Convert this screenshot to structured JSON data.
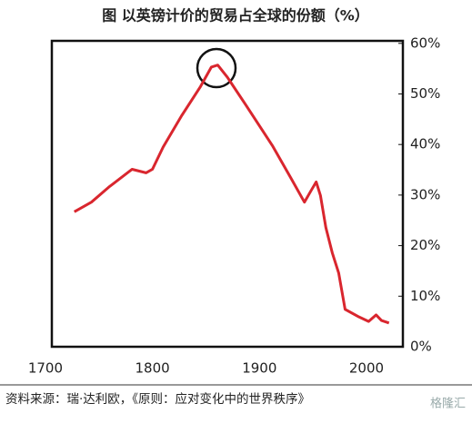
{
  "chart_data": {
    "type": "line",
    "title": "图 以英镑计价的贸易占全球的份额（%）",
    "source": "资料来源：瑞·达利欧，《原则：应对变化中的世界秩序》",
    "watermark": "格隆汇",
    "x": [
      1727,
      1743,
      1760,
      1781,
      1794,
      1800,
      1810,
      1827,
      1845,
      1855,
      1861,
      1870,
      1887,
      1912,
      1929,
      1942,
      1948,
      1953,
      1957,
      1962,
      1968,
      1974,
      1980,
      1993,
      2002,
      2009,
      2014,
      2021
    ],
    "series": [
      {
        "color": "#d9262e",
        "values": [
          26.7,
          28.6,
          31.7,
          35.1,
          34.4,
          35.1,
          39.5,
          45.6,
          51.5,
          55.3,
          55.7,
          53.3,
          47.9,
          39.8,
          33.5,
          28.6,
          30.8,
          32.6,
          29.9,
          23.6,
          18.6,
          14.6,
          7.4,
          5.9,
          5.0,
          6.3,
          5.2,
          4.7
        ]
      }
    ],
    "xlim": [
      1706,
      2034
    ],
    "xticks": [
      1700,
      1800,
      1900,
      2000
    ],
    "ylim": [
      0,
      60.5
    ],
    "yticks": [
      {
        "value": 0,
        "label": "0%"
      },
      {
        "value": 10,
        "label": "10%"
      },
      {
        "value": 20,
        "label": "20%"
      },
      {
        "value": 30,
        "label": "30%"
      },
      {
        "value": 40,
        "label": "40%"
      },
      {
        "value": 50,
        "label": "50%"
      },
      {
        "value": 60,
        "label": "60%"
      }
    ]
  }
}
